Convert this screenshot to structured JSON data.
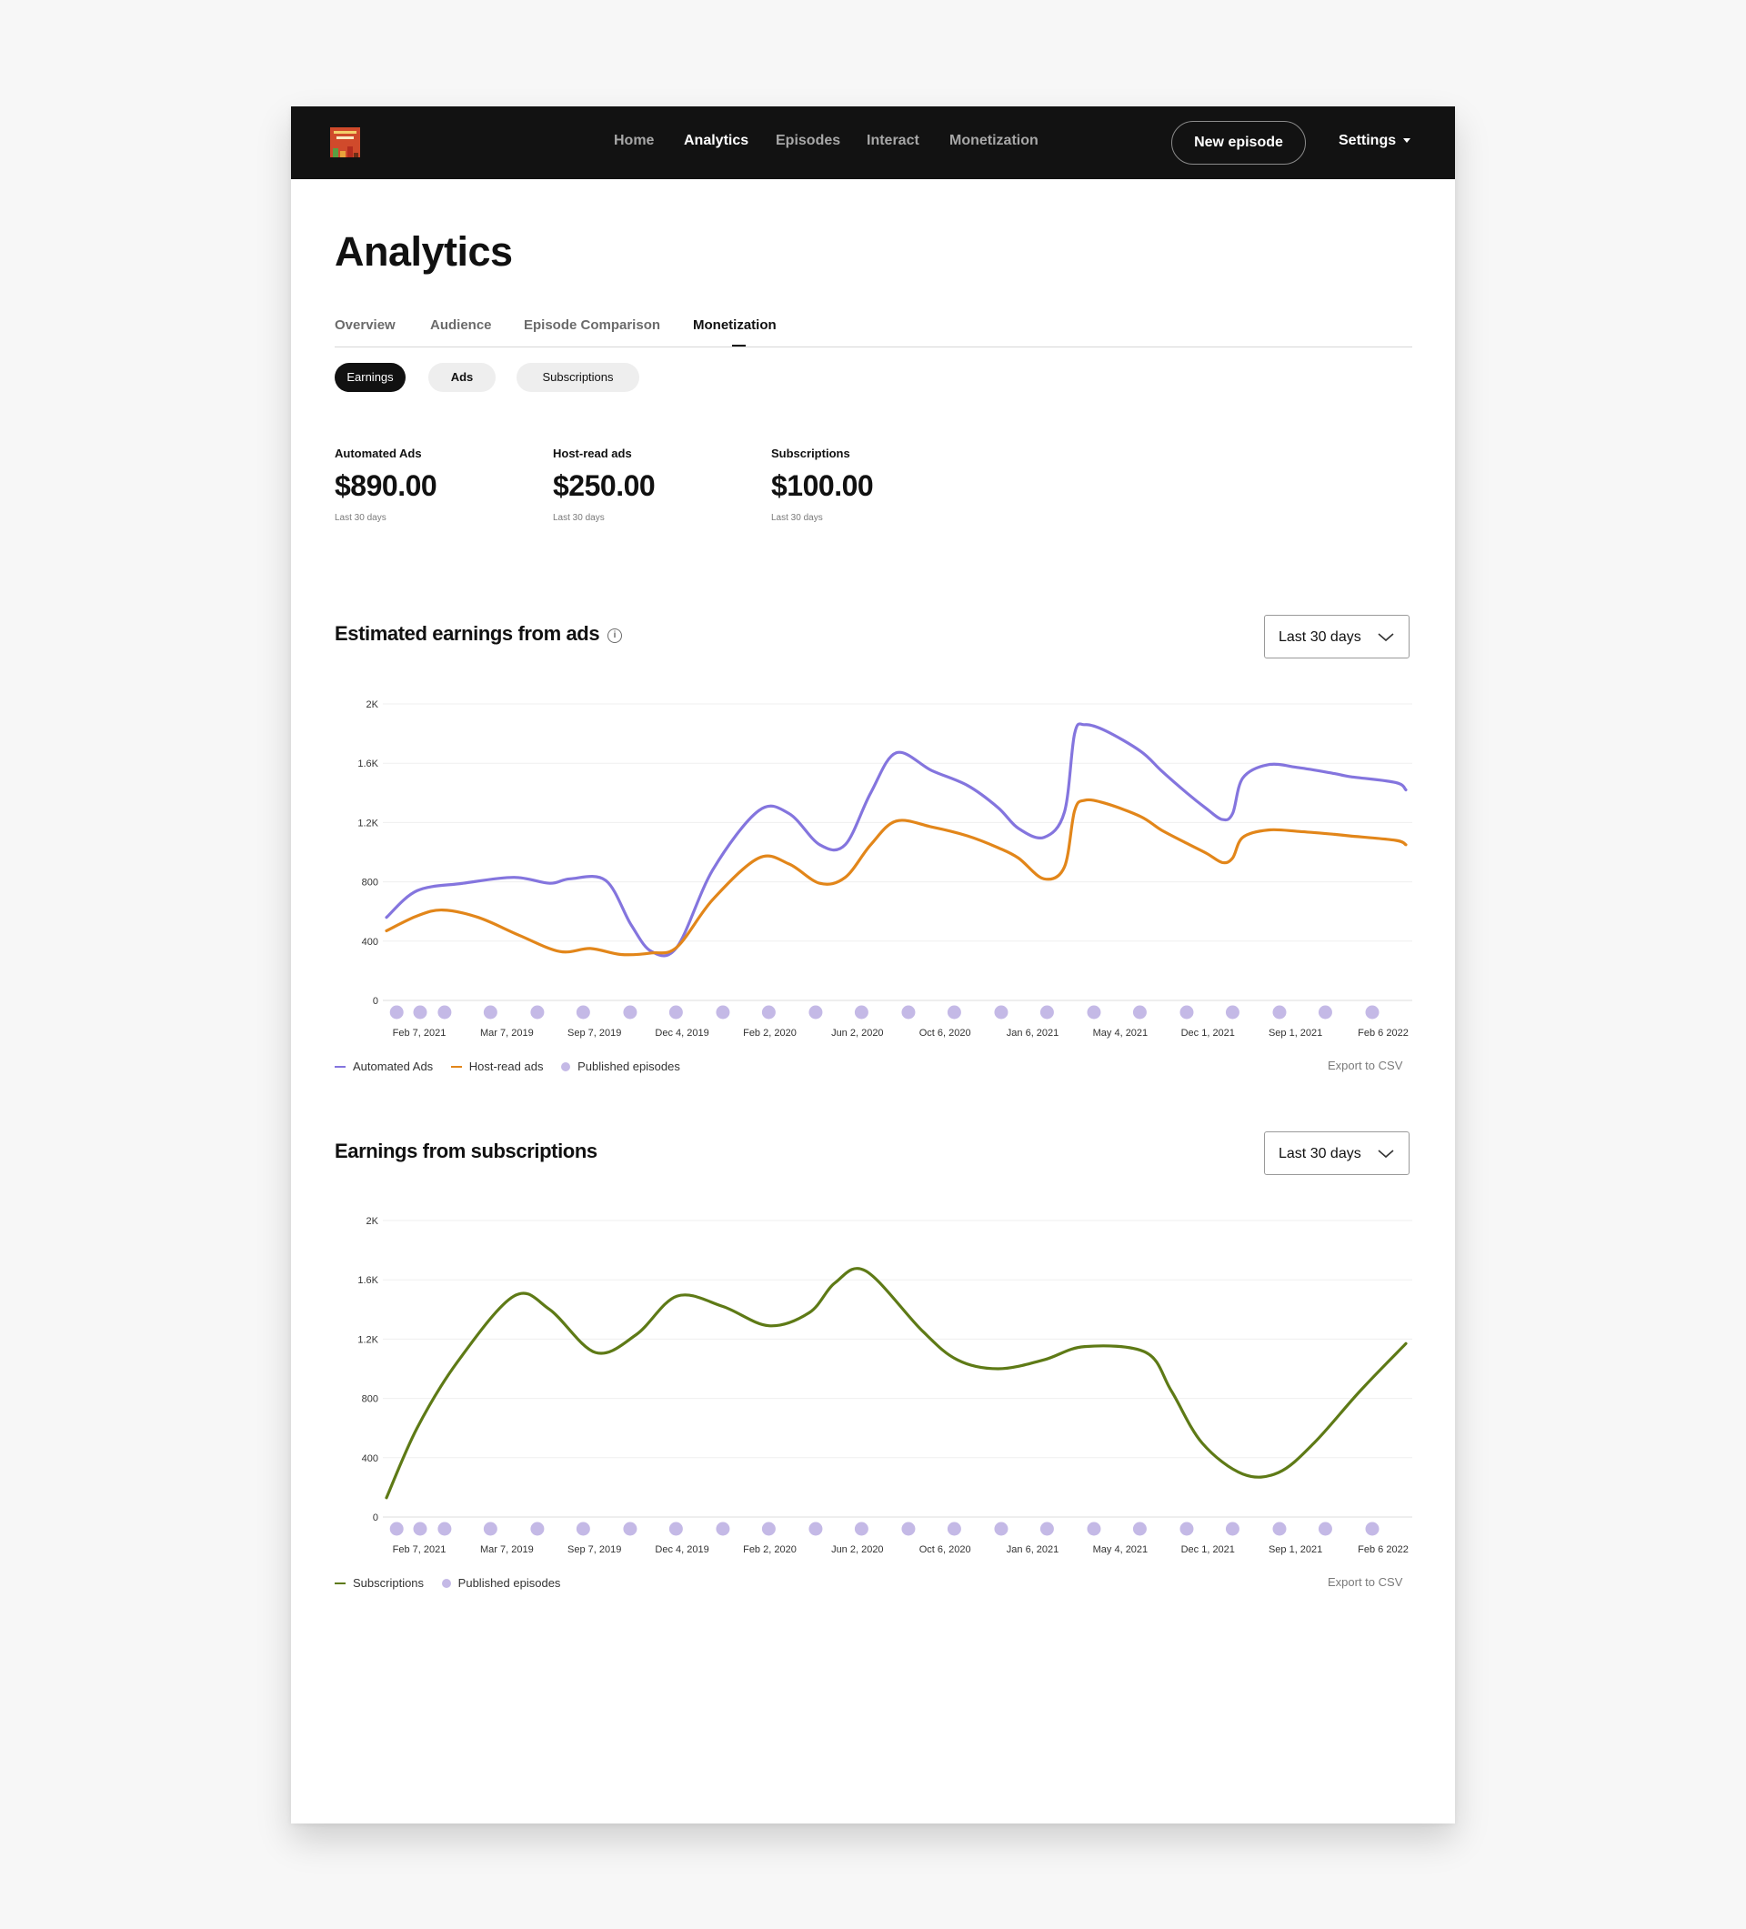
{
  "app": {
    "logo_name": "podcast-cover-logo",
    "nav": [
      "Home",
      "Analytics",
      "Episodes",
      "Interact",
      "Monetization"
    ],
    "active_nav": "Analytics",
    "new_episode_label": "New episode",
    "settings_label": "Settings"
  },
  "page": {
    "title": "Analytics",
    "tabs": [
      "Overview",
      "Audience",
      "Episode Comparison",
      "Monetization"
    ],
    "active_tab": "Monetization",
    "pills": [
      "Earnings",
      "Ads",
      "Subscriptions"
    ],
    "active_pill": "Earnings"
  },
  "kpis": [
    {
      "label": "Automated Ads",
      "value": "$890.00",
      "sub": "Last 30 days"
    },
    {
      "label": "Host-read ads",
      "value": "$250.00",
      "sub": "Last 30 days"
    },
    {
      "label": "Subscriptions",
      "value": "$100.00",
      "sub": "Last 30 days"
    }
  ],
  "ads_section": {
    "title": "Estimated earnings from ads",
    "range": "Last 30 days",
    "legend": [
      "Automated Ads",
      "Host-read ads",
      "Published episodes"
    ],
    "export": "Export to CSV"
  },
  "subs_section": {
    "title": "Earnings from subscriptions",
    "range": "Last 30 days",
    "legend": [
      "Subscriptions",
      "Published episodes"
    ],
    "export": "Export to CSV"
  },
  "colors": {
    "automated": "#8475de",
    "hostread": "#e2861a",
    "subscriptions": "#5e7a16",
    "episodes": "#c4b9e6"
  },
  "chart_data": [
    {
      "type": "line",
      "title": "Estimated earnings from ads",
      "x_ticks": [
        "Feb 7, 2021",
        "Mar 7, 2019",
        "Sep 7, 2019",
        "Dec 4, 2019",
        "Feb 2, 2020",
        "Jun 2, 2020",
        "Oct 6, 2020",
        "Jan 6, 2021",
        "May 4, 2021",
        "Dec 1, 2021",
        "Sep 1, 2021",
        "Feb 6 2022"
      ],
      "y_ticks": [
        "0",
        "400",
        "800",
        "1.2K",
        "1.6K",
        "2K"
      ],
      "ylim": [
        0,
        2000
      ],
      "grid": true,
      "legend_position": "bottom-left",
      "series": [
        {
          "name": "Automated Ads",
          "color": "#8475de",
          "x": [
            0.0,
            0.03,
            0.075,
            0.125,
            0.16,
            0.18,
            0.215,
            0.24,
            0.26,
            0.285,
            0.32,
            0.365,
            0.395,
            0.425,
            0.45,
            0.475,
            0.5,
            0.535,
            0.57,
            0.6,
            0.62,
            0.645,
            0.665,
            0.675,
            0.685,
            0.705,
            0.74,
            0.76,
            0.785,
            0.805,
            0.82,
            0.83,
            0.84,
            0.865,
            0.895,
            0.93,
            0.945,
            0.99,
            1.0
          ],
          "y": [
            560,
            740,
            790,
            830,
            790,
            820,
            810,
            510,
            330,
            360,
            880,
            1280,
            1260,
            1050,
            1050,
            1400,
            1670,
            1550,
            1450,
            1300,
            1160,
            1100,
            1270,
            1800,
            1860,
            1820,
            1680,
            1550,
            1400,
            1290,
            1220,
            1260,
            1500,
            1590,
            1570,
            1530,
            1510,
            1470,
            1420
          ]
        },
        {
          "name": "Host-read ads",
          "color": "#e2861a",
          "x": [
            0.0,
            0.03,
            0.055,
            0.09,
            0.13,
            0.17,
            0.2,
            0.23,
            0.26,
            0.285,
            0.32,
            0.365,
            0.395,
            0.425,
            0.45,
            0.475,
            0.5,
            0.535,
            0.57,
            0.6,
            0.62,
            0.645,
            0.665,
            0.675,
            0.685,
            0.705,
            0.74,
            0.76,
            0.785,
            0.805,
            0.82,
            0.83,
            0.84,
            0.865,
            0.895,
            0.93,
            0.945,
            0.99,
            1.0
          ],
          "y": [
            470,
            570,
            610,
            560,
            440,
            330,
            350,
            310,
            320,
            360,
            680,
            960,
            920,
            790,
            830,
            1050,
            1210,
            1170,
            1110,
            1030,
            960,
            820,
            900,
            1280,
            1350,
            1330,
            1240,
            1150,
            1060,
            990,
            930,
            960,
            1100,
            1150,
            1140,
            1120,
            1110,
            1080,
            1050
          ]
        },
        {
          "name": "Published episodes",
          "color": "#c4b9e6",
          "x": [
            0.01,
            0.033,
            0.057,
            0.102,
            0.148,
            0.193,
            0.239,
            0.284,
            0.33,
            0.375,
            0.421,
            0.466,
            0.512,
            0.557,
            0.603,
            0.648,
            0.694,
            0.739,
            0.785,
            0.83,
            0.876,
            0.921,
            0.967
          ],
          "y": [
            0,
            0,
            0,
            0,
            0,
            0,
            0,
            0,
            0,
            0,
            0,
            0,
            0,
            0,
            0,
            0,
            0,
            0,
            0,
            0,
            0,
            0,
            0
          ]
        }
      ]
    },
    {
      "type": "line",
      "title": "Earnings from subscriptions",
      "x_ticks": [
        "Feb 7, 2021",
        "Mar 7, 2019",
        "Sep 7, 2019",
        "Dec 4, 2019",
        "Feb 2, 2020",
        "Jun 2, 2020",
        "Oct 6, 2020",
        "Jan 6, 2021",
        "May 4, 2021",
        "Dec 1, 2021",
        "Sep 1, 2021",
        "Feb 6 2022"
      ],
      "y_ticks": [
        "0",
        "400",
        "800",
        "1.2K",
        "1.6K",
        "2K"
      ],
      "ylim": [
        0,
        2000
      ],
      "grid": true,
      "legend_position": "bottom-left",
      "series": [
        {
          "name": "Subscriptions",
          "color": "#5e7a16",
          "x": [
            0.0,
            0.03,
            0.07,
            0.125,
            0.16,
            0.205,
            0.245,
            0.285,
            0.33,
            0.375,
            0.415,
            0.44,
            0.47,
            0.525,
            0.56,
            0.6,
            0.645,
            0.685,
            0.745,
            0.77,
            0.8,
            0.84,
            0.875,
            0.91,
            0.955,
            1.0
          ],
          "y": [
            130,
            600,
            1050,
            1490,
            1400,
            1110,
            1230,
            1490,
            1420,
            1290,
            1380,
            1580,
            1660,
            1260,
            1060,
            1000,
            1060,
            1150,
            1110,
            850,
            500,
            290,
            300,
            500,
            850,
            1170
          ]
        },
        {
          "name": "Published episodes",
          "color": "#c4b9e6",
          "x": [
            0.01,
            0.033,
            0.057,
            0.102,
            0.148,
            0.193,
            0.239,
            0.284,
            0.33,
            0.375,
            0.421,
            0.466,
            0.512,
            0.557,
            0.603,
            0.648,
            0.694,
            0.739,
            0.785,
            0.83,
            0.876,
            0.921,
            0.967
          ],
          "y": [
            0,
            0,
            0,
            0,
            0,
            0,
            0,
            0,
            0,
            0,
            0,
            0,
            0,
            0,
            0,
            0,
            0,
            0,
            0,
            0,
            0,
            0,
            0
          ]
        }
      ]
    }
  ]
}
